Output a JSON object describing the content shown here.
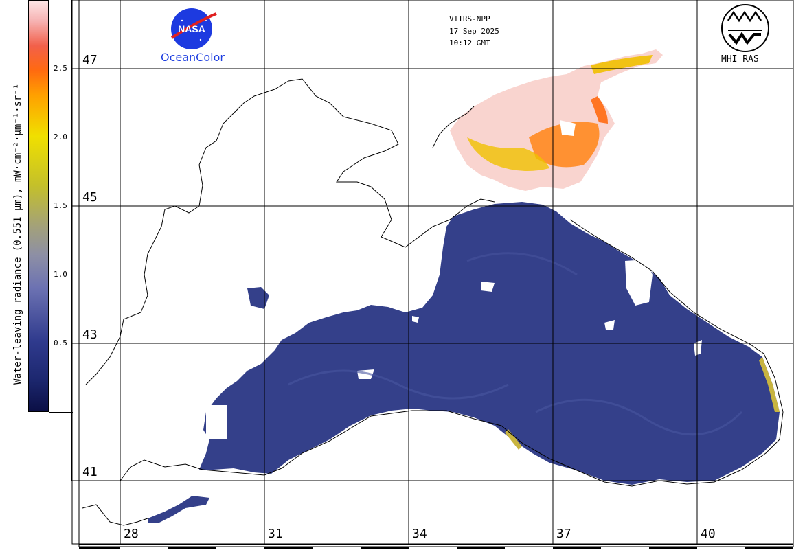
{
  "header": {
    "sensor": "VIIRS-NPP",
    "date": "17 Sep 2025",
    "time": "10:12 GMT"
  },
  "logos": {
    "nasa_text": "NASA",
    "oceancolor": "OceanColor",
    "mhi": "MHI RAS"
  },
  "colorbar": {
    "label": "Water-leaving radiance (0.551 μm), mW·cm⁻²·μm⁻¹·sr⁻¹",
    "ticks": [
      "2.5",
      "2.0",
      "1.5",
      "1.0",
      "0.5"
    ],
    "tick_values": [
      2.5,
      2.0,
      1.5,
      1.0,
      0.5
    ],
    "range": [
      0,
      3.0
    ],
    "colors": [
      "#0a1040",
      "#2a3a90",
      "#6f73b0",
      "#9a9a8e",
      "#c8c020",
      "#f0e000",
      "#ff8000",
      "#f05030",
      "#f8c0c0",
      "#fde8e8"
    ]
  },
  "grid": {
    "lat_labels": [
      "47",
      "45",
      "43",
      "41"
    ],
    "lon_labels": [
      "28",
      "31",
      "34",
      "37",
      "40"
    ]
  },
  "map": {
    "land_color": "#ffffff",
    "sea_color": "#34408a",
    "coast_color": "#000000",
    "cloud_color": "#ffffff",
    "azov_color": "#f9d4cf"
  }
}
